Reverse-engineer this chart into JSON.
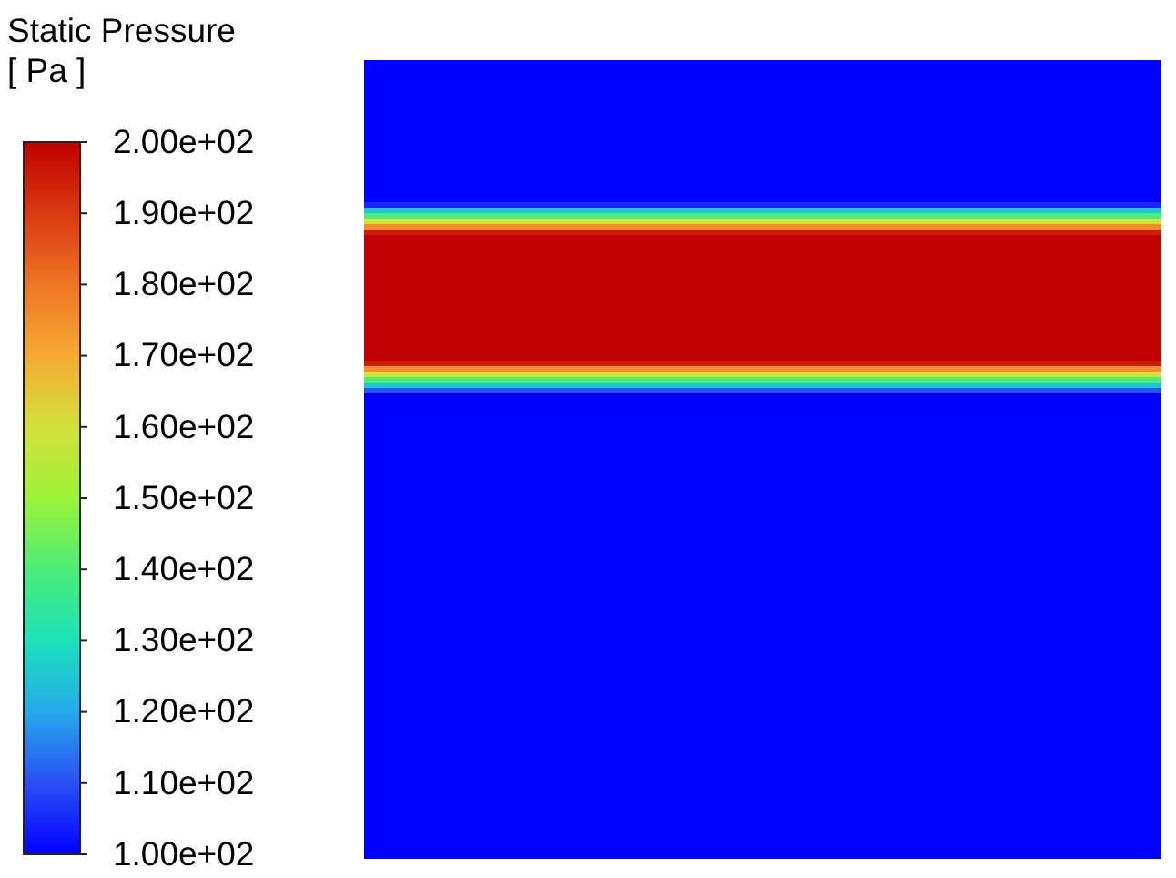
{
  "chart_data": {
    "type": "heatmap",
    "clabel": "Static Pressure\n[ Pa ]",
    "categories": [
      null
    ],
    "y_categories": [
      null,
      null,
      null,
      null,
      null,
      null,
      null,
      null,
      null,
      null,
      null,
      null,
      null,
      null,
      null,
      null,
      null,
      null,
      null,
      null,
      null,
      null,
      null,
      null,
      null,
      null,
      null,
      null,
      null,
      null,
      null,
      null,
      null,
      null,
      null,
      null,
      null,
      null,
      null,
      null,
      null,
      null,
      null,
      null,
      null,
      null,
      null,
      null,
      null,
      null,
      null,
      null,
      null,
      null,
      null,
      null,
      null,
      null,
      null,
      null,
      null,
      null,
      null,
      null,
      null,
      null,
      null,
      null,
      null,
      null,
      null,
      null,
      null,
      null,
      null,
      null,
      null,
      null,
      null,
      null,
      null,
      null,
      null,
      null,
      null,
      null,
      null,
      null,
      null,
      null,
      null,
      null,
      null,
      null,
      null,
      null,
      null,
      null,
      null,
      null,
      null,
      null,
      null,
      null,
      null,
      null,
      null,
      null,
      null,
      null,
      null,
      null,
      null,
      null,
      null,
      null,
      null,
      null,
      null,
      null,
      null,
      null,
      null,
      null,
      null,
      null,
      null,
      null,
      null,
      null,
      null,
      null,
      null,
      null,
      null,
      null,
      null,
      null,
      null,
      null,
      null,
      null,
      null,
      null,
      null,
      null
    ],
    "cells": [
      [
        100
      ],
      [
        100
      ],
      [
        100
      ],
      [
        100
      ],
      [
        100
      ],
      [
        100
      ],
      [
        100
      ],
      [
        100
      ],
      [
        100
      ],
      [
        100
      ],
      [
        100
      ],
      [
        100
      ],
      [
        100
      ],
      [
        100
      ],
      [
        100
      ],
      [
        100
      ],
      [
        100
      ],
      [
        100
      ],
      [
        100
      ],
      [
        100
      ],
      [
        100
      ],
      [
        100
      ],
      [
        100
      ],
      [
        100
      ],
      [
        100
      ],
      [
        100
      ],
      [
        105
      ],
      [
        125
      ],
      [
        140
      ],
      [
        160
      ],
      [
        175
      ],
      [
        195
      ],
      [
        200
      ],
      [
        200
      ],
      [
        200
      ],
      [
        200
      ],
      [
        200
      ],
      [
        200
      ],
      [
        200
      ],
      [
        200
      ],
      [
        200
      ],
      [
        200
      ],
      [
        200
      ],
      [
        200
      ],
      [
        200
      ],
      [
        200
      ],
      [
        200
      ],
      [
        200
      ],
      [
        200
      ],
      [
        200
      ],
      [
        200
      ],
      [
        200
      ],
      [
        200
      ],
      [
        200
      ],
      [
        200
      ],
      [
        195
      ],
      [
        175
      ],
      [
        160
      ],
      [
        140
      ],
      [
        125
      ],
      [
        110
      ],
      [
        100
      ],
      [
        100
      ],
      [
        100
      ],
      [
        100
      ],
      [
        100
      ],
      [
        100
      ],
      [
        100
      ],
      [
        100
      ],
      [
        100
      ],
      [
        100
      ],
      [
        100
      ],
      [
        100
      ],
      [
        100
      ],
      [
        100
      ],
      [
        100
      ],
      [
        100
      ],
      [
        100
      ],
      [
        100
      ],
      [
        100
      ],
      [
        100
      ],
      [
        100
      ],
      [
        100
      ],
      [
        100
      ],
      [
        100
      ],
      [
        100
      ],
      [
        100
      ],
      [
        100
      ],
      [
        100
      ],
      [
        100
      ],
      [
        100
      ],
      [
        100
      ],
      [
        100
      ],
      [
        100
      ],
      [
        100
      ],
      [
        100
      ],
      [
        100
      ],
      [
        100
      ],
      [
        100
      ],
      [
        100
      ],
      [
        100
      ],
      [
        100
      ],
      [
        100
      ],
      [
        100
      ],
      [
        100
      ],
      [
        100
      ],
      [
        100
      ],
      [
        100
      ],
      [
        100
      ],
      [
        100
      ],
      [
        100
      ],
      [
        100
      ],
      [
        100
      ],
      [
        100
      ],
      [
        100
      ],
      [
        100
      ],
      [
        100
      ],
      [
        100
      ],
      [
        100
      ],
      [
        100
      ],
      [
        100
      ],
      [
        100
      ],
      [
        100
      ],
      [
        100
      ],
      [
        100
      ],
      [
        100
      ],
      [
        100
      ],
      [
        100
      ],
      [
        100
      ],
      [
        100
      ],
      [
        100
      ],
      [
        100
      ],
      [
        100
      ],
      [
        100
      ],
      [
        100
      ],
      [
        100
      ],
      [
        100
      ],
      [
        100
      ],
      [
        100
      ],
      [
        100
      ],
      [
        100
      ],
      [
        100
      ],
      [
        100
      ],
      [
        100
      ],
      [
        100
      ],
      [
        100
      ]
    ],
    "clim": [
      100,
      200
    ],
    "cticks": [
      {
        "value": 100,
        "label": "1.00e+02"
      },
      {
        "value": 110,
        "label": "1.10e+02"
      },
      {
        "value": 120,
        "label": "1.20e+02"
      },
      {
        "value": 130,
        "label": "1.30e+02"
      },
      {
        "value": 140,
        "label": "1.40e+02"
      },
      {
        "value": 150,
        "label": "1.50e+02"
      },
      {
        "value": 160,
        "label": "1.60e+02"
      },
      {
        "value": 170,
        "label": "1.70e+02"
      },
      {
        "value": 180,
        "label": "1.80e+02"
      },
      {
        "value": 190,
        "label": "1.90e+02"
      },
      {
        "value": 200,
        "label": "2.00e+02"
      }
    ]
  }
}
